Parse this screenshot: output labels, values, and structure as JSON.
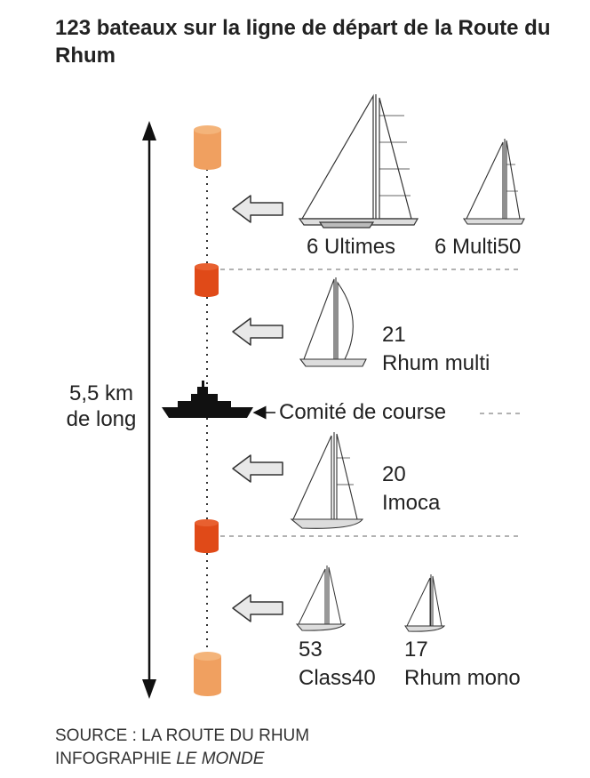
{
  "title": "123 bateaux sur la ligne de départ de la Route du Rhum",
  "line_length": {
    "value": "5,5 km",
    "unit_text": "de long"
  },
  "committee_label": "Comité de course",
  "classes": [
    {
      "count": "6",
      "name": "Ultimes"
    },
    {
      "count": "6",
      "name": "Multi50"
    },
    {
      "count": "21",
      "name": "Rhum multi"
    },
    {
      "count": "20",
      "name": "Imoca"
    },
    {
      "count": "53",
      "name": "Class40"
    },
    {
      "count": "17",
      "name": "Rhum mono"
    }
  ],
  "source": {
    "line1": "SOURCE : LA ROUTE DU RHUM",
    "line2_prefix": "INFOGRAPHIE ",
    "line2_italic": "LE MONDE"
  },
  "colors": {
    "buoy_end": "#f0a060",
    "buoy_mid": "#e04a18",
    "arrow_fill": "#e8e8e8",
    "arrow_stroke": "#333333",
    "ship": "#111111",
    "dashed": "#999999"
  }
}
